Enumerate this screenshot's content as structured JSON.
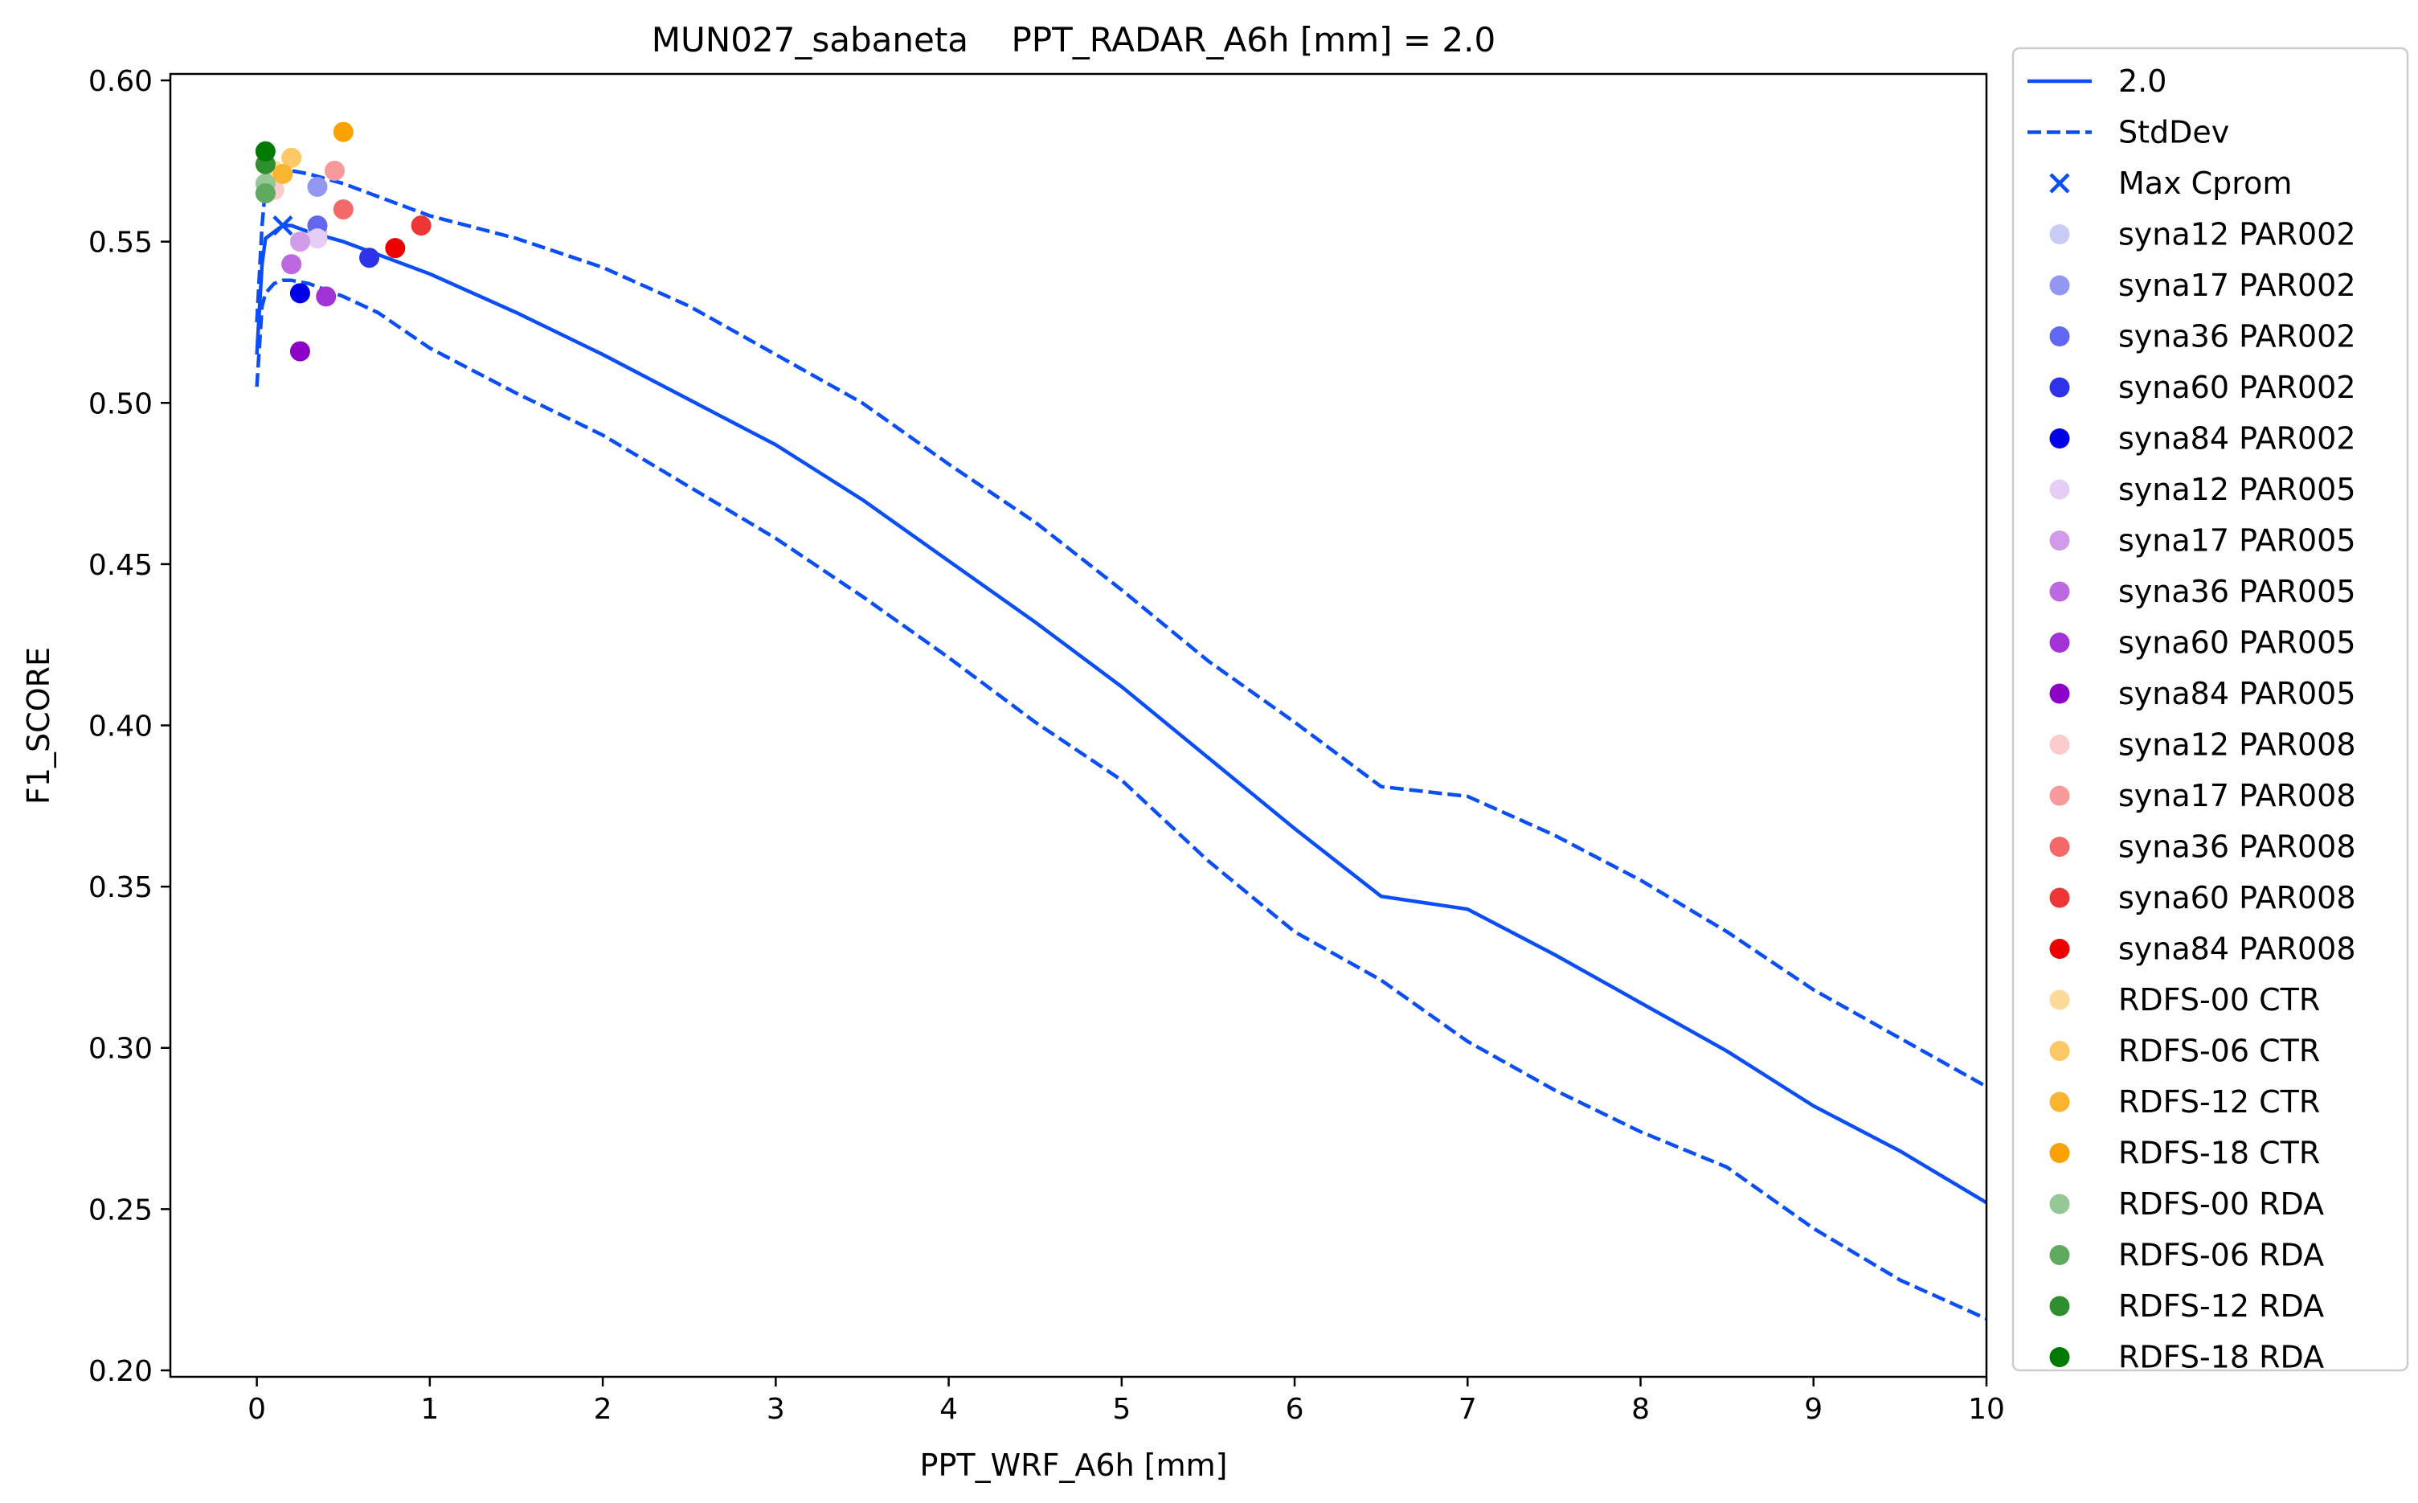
{
  "chart_data": {
    "type": "line",
    "title": "MUN027_sabaneta    PPT_RADAR_A6h [mm] = 2.0",
    "xlabel": "PPT_WRF_A6h [mm]",
    "ylabel": "F1_SCORE",
    "xlim": [
      -0.5,
      10
    ],
    "ylim": [
      0.198,
      0.602
    ],
    "xticks": [
      0,
      1,
      2,
      3,
      4,
      5,
      6,
      7,
      8,
      9,
      10
    ],
    "xtick_labels": [
      "0",
      "1",
      "2",
      "3",
      "4",
      "5",
      "6",
      "7",
      "8",
      "9",
      "10"
    ],
    "yticks": [
      0.2,
      0.25,
      0.3,
      0.35,
      0.4,
      0.45,
      0.5,
      0.55,
      0.6
    ],
    "ytick_labels": [
      "0.20",
      "0.25",
      "0.30",
      "0.35",
      "0.40",
      "0.45",
      "0.50",
      "0.55",
      "0.60"
    ],
    "grid": false,
    "legend_position": "outside-right",
    "series": [
      {
        "name": "2.0",
        "style": "solid",
        "color": "#0a4ff5",
        "x": [
          0,
          0.03,
          0.05,
          0.1,
          0.15,
          0.2,
          0.3,
          0.5,
          0.7,
          1,
          1.5,
          2,
          2.5,
          3,
          3.5,
          4,
          4.5,
          5,
          5.5,
          6,
          6.5,
          7,
          7.5,
          8,
          8.5,
          9,
          9.5,
          10
        ],
        "y": [
          0.515,
          0.543,
          0.551,
          0.553,
          0.555,
          0.555,
          0.553,
          0.55,
          0.546,
          0.54,
          0.528,
          0.515,
          0.501,
          0.487,
          0.47,
          0.451,
          0.432,
          0.412,
          0.39,
          0.368,
          0.347,
          0.343,
          0.329,
          0.314,
          0.299,
          0.282,
          0.268,
          0.252
        ]
      },
      {
        "name": "StdDev",
        "style": "dashed",
        "color": "#0a4ff5",
        "x": [
          0,
          0.03,
          0.05,
          0.1,
          0.15,
          0.2,
          0.3,
          0.5,
          0.7,
          1,
          1.5,
          2,
          2.5,
          3,
          3.5,
          4,
          4.5,
          5,
          5.5,
          6,
          6.5,
          7,
          7.5,
          8,
          8.5,
          9,
          9.5,
          10
        ],
        "y": [
          0.525,
          0.555,
          0.567,
          0.572,
          0.573,
          0.572,
          0.571,
          0.568,
          0.564,
          0.558,
          0.551,
          0.542,
          0.53,
          0.515,
          0.5,
          0.481,
          0.463,
          0.442,
          0.42,
          0.401,
          0.381,
          0.378,
          0.366,
          0.352,
          0.336,
          0.318,
          0.303,
          0.288
        ]
      },
      {
        "name": "",
        "style": "dashed",
        "color": "#0a4ff5",
        "x": [
          0,
          0.03,
          0.05,
          0.1,
          0.15,
          0.2,
          0.3,
          0.5,
          0.7,
          1,
          1.5,
          2,
          2.5,
          3,
          3.5,
          4,
          4.5,
          5,
          5.5,
          6,
          6.5,
          7,
          7.5,
          8,
          8.5,
          9,
          9.5,
          10
        ],
        "y": [
          0.505,
          0.53,
          0.534,
          0.537,
          0.538,
          0.538,
          0.537,
          0.533,
          0.528,
          0.517,
          0.503,
          0.49,
          0.474,
          0.458,
          0.44,
          0.421,
          0.401,
          0.383,
          0.358,
          0.336,
          0.321,
          0.302,
          0.287,
          0.274,
          0.263,
          0.244,
          0.228,
          0.216
        ]
      }
    ],
    "max_marker": {
      "name": "Max Cprom",
      "x": 0.15,
      "y": 0.555,
      "color": "#0a4ff5",
      "marker": "x"
    },
    "points": [
      {
        "name": "syna12 PAR002",
        "color": "#c9ccf7",
        "x": 0.35,
        "y": 0.553
      },
      {
        "name": "syna17 PAR002",
        "color": "#9297f1",
        "x": 0.35,
        "y": 0.567
      },
      {
        "name": "syna36 PAR002",
        "color": "#6167ee",
        "x": 0.35,
        "y": 0.555
      },
      {
        "name": "syna60 PAR002",
        "color": "#2e33ea",
        "x": 0.65,
        "y": 0.545
      },
      {
        "name": "syna84 PAR002",
        "color": "#0000e8",
        "x": 0.25,
        "y": 0.534
      },
      {
        "name": "syna12 PAR005",
        "color": "#e6cdf4",
        "x": 0.35,
        "y": 0.551
      },
      {
        "name": "syna17 PAR005",
        "color": "#d29be9",
        "x": 0.25,
        "y": 0.55
      },
      {
        "name": "syna36 PAR005",
        "color": "#bd68e1",
        "x": 0.2,
        "y": 0.543
      },
      {
        "name": "syna60 PAR005",
        "color": "#a333d6",
        "x": 0.4,
        "y": 0.533
      },
      {
        "name": "syna84 PAR005",
        "color": "#8c00c8",
        "x": 0.25,
        "y": 0.516
      },
      {
        "name": "syna12 PAR008",
        "color": "#fccbcb",
        "x": 0.1,
        "y": 0.566
      },
      {
        "name": "syna17 PAR008",
        "color": "#f89a9a",
        "x": 0.45,
        "y": 0.572
      },
      {
        "name": "syna36 PAR008",
        "color": "#f36868",
        "x": 0.5,
        "y": 0.56
      },
      {
        "name": "syna60 PAR008",
        "color": "#ef3636",
        "x": 0.95,
        "y": 0.555
      },
      {
        "name": "syna84 PAR008",
        "color": "#ec0000",
        "x": 0.8,
        "y": 0.548
      },
      {
        "name": "RDFS-00 CTR",
        "color": "#fcdb9a",
        "x": 0.1,
        "y": 0.572
      },
      {
        "name": "RDFS-06 CTR",
        "color": "#fcc865",
        "x": 0.2,
        "y": 0.576
      },
      {
        "name": "RDFS-12 CTR",
        "color": "#fbb430",
        "x": 0.15,
        "y": 0.571
      },
      {
        "name": "RDFS-18 CTR",
        "color": "#f9a200",
        "x": 0.5,
        "y": 0.584
      },
      {
        "name": "RDFS-00 RDA",
        "color": "#95c895",
        "x": 0.05,
        "y": 0.568
      },
      {
        "name": "RDFS-06 RDA",
        "color": "#5faa5f",
        "x": 0.05,
        "y": 0.565
      },
      {
        "name": "RDFS-12 RDA",
        "color": "#2f8f2f",
        "x": 0.05,
        "y": 0.574
      },
      {
        "name": "RDFS-18 RDA",
        "color": "#007a00",
        "x": 0.05,
        "y": 0.578
      }
    ]
  }
}
